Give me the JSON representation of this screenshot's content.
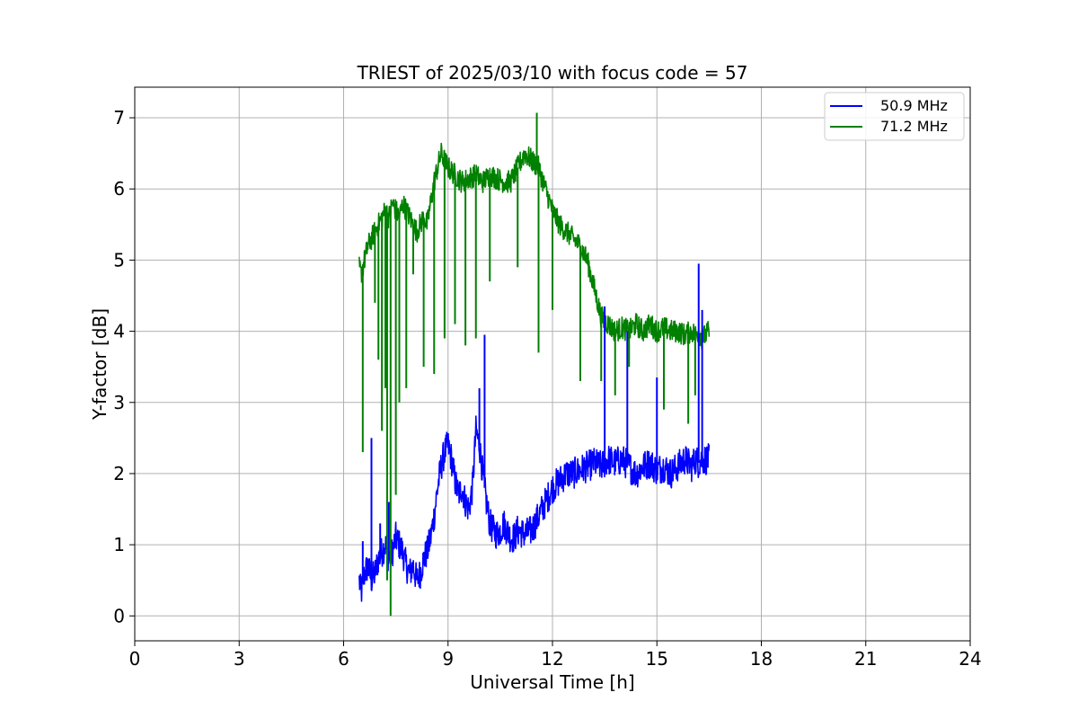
{
  "chart_data": {
    "type": "line",
    "title": "TRIEST of 2025/03/10 with focus code = 57",
    "xlabel": "Universal Time [h]",
    "ylabel": "Y-factor [dB]",
    "xlim": [
      0,
      24
    ],
    "ylim": [
      -0.35,
      7.43
    ],
    "xticks": [
      "0",
      "3",
      "6",
      "9",
      "12",
      "15",
      "18",
      "21",
      "24"
    ],
    "yticks": [
      "0",
      "1",
      "2",
      "3",
      "4",
      "5",
      "6",
      "7"
    ],
    "grid": true,
    "legend_position": "top-right",
    "series": [
      {
        "name": "50.9 MHz",
        "color": "#0000ff",
        "x": [
          6.45,
          6.5,
          6.6,
          6.7,
          6.8,
          6.9,
          7.0,
          7.1,
          7.2,
          7.3,
          7.4,
          7.5,
          7.6,
          7.7,
          7.8,
          7.9,
          8.0,
          8.1,
          8.2,
          8.3,
          8.4,
          8.5,
          8.6,
          8.7,
          8.8,
          8.9,
          9.0,
          9.1,
          9.2,
          9.3,
          9.4,
          9.5,
          9.6,
          9.7,
          9.8,
          9.9,
          10.0,
          10.1,
          10.2,
          10.3,
          10.4,
          10.5,
          10.6,
          10.7,
          10.8,
          10.9,
          11.0,
          11.2,
          11.4,
          11.6,
          11.8,
          12.0,
          12.2,
          12.4,
          12.6,
          12.8,
          13.0,
          13.2,
          13.4,
          13.6,
          13.8,
          14.0,
          14.2,
          14.4,
          14.6,
          14.8,
          15.0,
          15.2,
          15.4,
          15.6,
          15.8,
          16.0,
          16.1,
          16.2,
          16.3,
          16.5
        ],
        "y": [
          0.5,
          0.3,
          0.6,
          0.7,
          0.5,
          0.6,
          0.8,
          0.9,
          1.0,
          0.8,
          0.9,
          1.1,
          1.0,
          0.9,
          0.7,
          0.6,
          0.7,
          0.5,
          0.6,
          0.8,
          0.9,
          1.1,
          1.4,
          1.8,
          2.1,
          2.3,
          2.4,
          2.2,
          1.9,
          1.7,
          1.8,
          1.6,
          1.5,
          1.8,
          2.6,
          2.4,
          2.0,
          1.6,
          1.3,
          1.2,
          1.15,
          1.2,
          1.3,
          1.2,
          1.1,
          1.1,
          1.2,
          1.15,
          1.2,
          1.4,
          1.6,
          1.8,
          1.9,
          2.0,
          2.0,
          2.05,
          2.1,
          2.15,
          2.1,
          2.2,
          2.15,
          2.2,
          2.1,
          2.0,
          2.1,
          2.15,
          2.05,
          2.1,
          2.0,
          2.1,
          2.2,
          2.1,
          2.2,
          2.15,
          2.2,
          2.2
        ]
      },
      {
        "name": "71.2 MHz",
        "color": "#008000",
        "x": [
          6.45,
          6.5,
          6.6,
          6.7,
          6.8,
          6.9,
          7.0,
          7.1,
          7.2,
          7.3,
          7.4,
          7.5,
          7.6,
          7.7,
          7.8,
          7.9,
          8.0,
          8.1,
          8.2,
          8.3,
          8.4,
          8.5,
          8.6,
          8.7,
          8.8,
          8.9,
          9.0,
          9.2,
          9.4,
          9.6,
          9.8,
          10.0,
          10.2,
          10.4,
          10.6,
          10.8,
          11.0,
          11.2,
          11.4,
          11.6,
          11.8,
          12.0,
          12.2,
          12.4,
          12.6,
          12.8,
          13.0,
          13.2,
          13.4,
          13.6,
          13.8,
          14.0,
          14.2,
          14.4,
          14.6,
          14.8,
          15.0,
          15.2,
          15.4,
          15.6,
          15.8,
          16.0,
          16.1,
          16.2,
          16.3,
          16.5
        ],
        "y": [
          4.9,
          4.8,
          5.0,
          5.2,
          5.3,
          5.4,
          5.5,
          5.6,
          5.7,
          5.6,
          5.8,
          5.7,
          5.6,
          5.8,
          5.7,
          5.6,
          5.5,
          5.4,
          5.5,
          5.6,
          5.5,
          5.8,
          6.1,
          6.3,
          6.5,
          6.4,
          6.3,
          6.2,
          6.1,
          6.15,
          6.2,
          6.1,
          6.2,
          6.15,
          6.1,
          6.1,
          6.3,
          6.5,
          6.4,
          6.3,
          6.0,
          5.7,
          5.5,
          5.4,
          5.3,
          5.2,
          5.0,
          4.6,
          4.2,
          4.1,
          4.0,
          4.05,
          4.0,
          4.1,
          4.0,
          4.1,
          4.0,
          4.05,
          4.0,
          4.0,
          3.95,
          4.0,
          3.95,
          4.0,
          3.9,
          4.0
        ]
      }
    ],
    "spikes": [
      {
        "series": "50.9 MHz",
        "x": [
          6.55,
          6.8,
          7.05,
          7.3,
          9.9,
          10.05,
          13.5,
          14.15,
          15.0,
          16.2,
          16.3
        ],
        "y": [
          1.05,
          2.5,
          1.3,
          1.6,
          3.2,
          3.95,
          4.35,
          4.0,
          3.35,
          4.95,
          4.3
        ]
      },
      {
        "series": "71.2 MHz",
        "x": [
          6.55,
          6.9,
          7.0,
          7.1,
          7.2,
          7.25,
          7.35,
          7.5,
          7.6,
          7.8,
          8.0,
          8.3,
          8.6,
          8.9,
          9.2,
          9.5,
          9.8,
          10.2,
          11.0,
          11.6,
          12.0,
          12.8,
          13.4,
          13.8,
          14.2,
          15.2,
          15.9,
          16.1
        ],
        "y": [
          2.3,
          4.4,
          3.6,
          2.6,
          3.2,
          0.5,
          0.0,
          1.7,
          3.0,
          3.2,
          4.8,
          3.5,
          3.4,
          3.9,
          4.1,
          3.8,
          3.9,
          4.7,
          4.9,
          3.7,
          4.3,
          3.3,
          3.3,
          3.1,
          3.5,
          2.9,
          2.7,
          3.1
        ]
      },
      {
        "series": "71.2 MHz",
        "x": [
          11.55
        ],
        "y": [
          7.07
        ]
      }
    ]
  }
}
